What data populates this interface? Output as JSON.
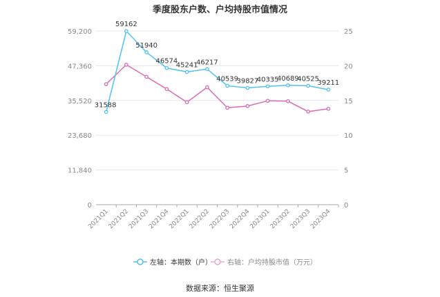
{
  "chart_data": {
    "type": "line",
    "title": "季度股东户数、户均持股市值情况",
    "categories": [
      "2021Q1",
      "2021Q2",
      "2021Q3",
      "2021Q4",
      "2022Q1",
      "2022Q2",
      "2022Q3",
      "2022Q4",
      "2023Q1",
      "2023Q2",
      "2023Q3",
      "2023Q4"
    ],
    "left_axis": {
      "range": [
        0,
        59200
      ],
      "ticks": [
        "0",
        "11,840",
        "23,680",
        "35,520",
        "47,360",
        "59,200"
      ]
    },
    "right_axis": {
      "range": [
        0,
        25
      ],
      "ticks": [
        "0",
        "5",
        "10",
        "15",
        "20",
        "25"
      ]
    },
    "grid": true,
    "legend_position": "bottom",
    "series": [
      {
        "name": "左轴：本期数（户）",
        "axis": "left",
        "color": "#4fc1f5",
        "values": [
          31588,
          59162,
          51940,
          46574,
          45241,
          46217,
          40539,
          39827,
          40335,
          40689,
          40525,
          39211
        ],
        "labels": [
          "31588",
          "59162",
          "51940",
          "46574",
          "45241",
          "46217",
          "40539",
          "39827",
          "40335",
          "40689",
          "40525",
          "39211"
        ]
      },
      {
        "name": "右轴：户均持股市值（万元）",
        "axis": "right",
        "color": "#d96bb0",
        "values": [
          17.35,
          20.15,
          18.4,
          16.65,
          14.75,
          16.9,
          13.95,
          14.2,
          14.95,
          14.9,
          13.4,
          13.8
        ]
      }
    ],
    "source": "数据来源：恒生聚源"
  }
}
